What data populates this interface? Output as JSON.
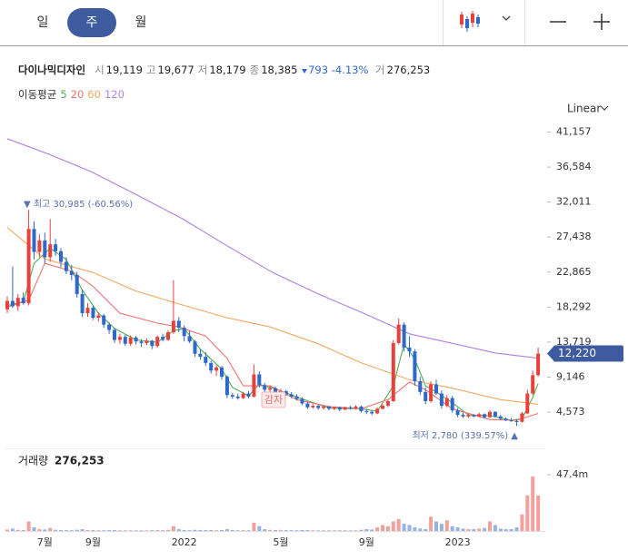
{
  "tabs": [
    "일",
    "주",
    "월"
  ],
  "info": {
    "name": "다이나믹디자인",
    "items": [
      {
        "label": "시",
        "value": "19,119"
      },
      {
        "label": "고",
        "value": "19,677"
      },
      {
        "label": "저",
        "value": "18,179"
      },
      {
        "label": "종",
        "value": "18,385"
      }
    ],
    "change": "793",
    "change_pct": "-4.13%",
    "volume_label": "거",
    "volume_value": "276,253"
  },
  "scale_mode": "Linear",
  "ma_legend": "이동평균",
  "chart_data": {
    "type": "candlestick",
    "categories": [
      null,
      null,
      null,
      null,
      null,
      null,
      null,
      "7월",
      null,
      null,
      null,
      null,
      null,
      null,
      null,
      null,
      "9월",
      null,
      null,
      null,
      null,
      null,
      null,
      null,
      null,
      null,
      null,
      null,
      null,
      null,
      null,
      null,
      null,
      "2022",
      null,
      null,
      null,
      null,
      null,
      null,
      null,
      null,
      null,
      null,
      null,
      null,
      null,
      null,
      null,
      null,
      null,
      "5월",
      null,
      null,
      null,
      null,
      null,
      null,
      null,
      null,
      null,
      null,
      null,
      null,
      null,
      null,
      null,
      "9월",
      null,
      null,
      null,
      null,
      null,
      null,
      null,
      null,
      null,
      null,
      null,
      null,
      null,
      null,
      null,
      null,
      "2023",
      null,
      null,
      null,
      null,
      null,
      null,
      null,
      null,
      null,
      null,
      null,
      null,
      null,
      null,
      null
    ],
    "candles": [
      [
        18000,
        19700,
        17500,
        19100
      ],
      [
        19100,
        23600,
        18200,
        18400
      ],
      [
        18400,
        20000,
        17800,
        19500
      ],
      [
        19500,
        20200,
        18600,
        18800
      ],
      [
        18800,
        30985,
        18500,
        28500
      ],
      [
        28500,
        29500,
        24500,
        25500
      ],
      [
        25500,
        27800,
        24800,
        27000
      ],
      [
        27000,
        28000,
        24000,
        24800
      ],
      [
        24800,
        29800,
        24200,
        26500
      ],
      [
        26500,
        27200,
        25000,
        25600
      ],
      [
        25600,
        26000,
        23500,
        24200
      ],
      [
        24200,
        24800,
        22600,
        23000
      ],
      [
        23000,
        23800,
        21800,
        22500
      ],
      [
        22500,
        22900,
        19500,
        20000
      ],
      [
        20000,
        20600,
        17000,
        17500
      ],
      [
        17500,
        18800,
        17000,
        18200
      ],
      [
        18200,
        18500,
        16600,
        16900
      ],
      [
        16900,
        17600,
        16400,
        17200
      ],
      [
        17200,
        17400,
        15600,
        16000
      ],
      [
        16000,
        16300,
        14800,
        15300
      ],
      [
        15300,
        15500,
        13600,
        14000
      ],
      [
        14000,
        14800,
        13500,
        14400
      ],
      [
        14400,
        14700,
        13200,
        13500
      ],
      [
        13500,
        14600,
        13200,
        14300
      ],
      [
        14300,
        14500,
        13400,
        13800
      ],
      [
        13800,
        14100,
        13100,
        13600
      ],
      [
        13600,
        14200,
        13300,
        13900
      ],
      [
        13900,
        14000,
        12800,
        13200
      ],
      [
        13200,
        14600,
        13000,
        14400
      ],
      [
        14400,
        14800,
        13800,
        14000
      ],
      [
        14000,
        15300,
        13900,
        15000
      ],
      [
        15000,
        21800,
        14800,
        16500
      ],
      [
        16500,
        17000,
        15000,
        15600
      ],
      [
        15600,
        15900,
        13800,
        14500
      ],
      [
        14500,
        15200,
        13600,
        13800
      ],
      [
        13800,
        14000,
        11800,
        12200
      ],
      [
        12200,
        12800,
        11400,
        11800
      ],
      [
        11800,
        12400,
        10600,
        11000
      ],
      [
        11000,
        11300,
        9600,
        10000
      ],
      [
        10000,
        10700,
        9300,
        10400
      ],
      [
        10400,
        10600,
        8800,
        9200
      ],
      [
        9200,
        9400,
        6400,
        6800
      ],
      [
        6800,
        7100,
        6300,
        6600
      ],
      [
        6600,
        7000,
        6200,
        6400
      ],
      [
        6400,
        7200,
        6300,
        7000
      ],
      [
        7000,
        7300,
        6400,
        6600
      ],
      [
        6600,
        10800,
        6500,
        9500
      ],
      [
        9500,
        9900,
        7800,
        8100
      ],
      [
        8100,
        8400,
        7200,
        7500
      ],
      [
        7500,
        8000,
        7100,
        7700
      ],
      [
        7700,
        7900,
        6900,
        7100
      ],
      [
        7100,
        7600,
        6800,
        7300
      ],
      [
        7300,
        7500,
        6700,
        6900
      ],
      [
        6900,
        7200,
        6400,
        6600
      ],
      [
        6600,
        6900,
        6100,
        6300
      ],
      [
        6300,
        6500,
        5500,
        5700
      ],
      [
        5700,
        5900,
        5000,
        5200
      ],
      [
        5200,
        5600,
        5000,
        5400
      ],
      [
        5400,
        5500,
        4900,
        5100
      ],
      [
        5100,
        5400,
        4900,
        5300
      ],
      [
        5300,
        5400,
        4800,
        5000
      ],
      [
        5000,
        5300,
        4800,
        5200
      ],
      [
        5200,
        5300,
        4700,
        4900
      ],
      [
        4900,
        5300,
        4800,
        5200
      ],
      [
        5200,
        5400,
        4900,
        5100
      ],
      [
        5100,
        5500,
        4900,
        5300
      ],
      [
        5300,
        5400,
        4500,
        4700
      ],
      [
        4700,
        5000,
        4300,
        4600
      ],
      [
        4600,
        4800,
        4200,
        4400
      ],
      [
        4400,
        5200,
        4300,
        5000
      ],
      [
        5000,
        5600,
        4900,
        5400
      ],
      [
        5400,
        6200,
        5200,
        6000
      ],
      [
        6000,
        14000,
        5900,
        13600
      ],
      [
        13600,
        16800,
        13400,
        16000
      ],
      [
        16000,
        16300,
        12500,
        13000
      ],
      [
        13000,
        14500,
        11800,
        12500
      ],
      [
        12500,
        12800,
        8000,
        8600
      ],
      [
        8600,
        9200,
        6800,
        7200
      ],
      [
        7200,
        7800,
        5600,
        6000
      ],
      [
        6000,
        8600,
        5800,
        8200
      ],
      [
        8200,
        8800,
        6800,
        7000
      ],
      [
        7000,
        7400,
        5000,
        5400
      ],
      [
        5400,
        6800,
        5200,
        6400
      ],
      [
        6400,
        6700,
        4500,
        4800
      ],
      [
        4800,
        5100,
        3900,
        4200
      ],
      [
        4200,
        4500,
        3800,
        4000
      ],
      [
        4000,
        4400,
        3800,
        4200
      ],
      [
        4200,
        4300,
        3900,
        4000
      ],
      [
        4000,
        4500,
        3900,
        4300
      ],
      [
        4300,
        4400,
        3800,
        3900
      ],
      [
        3900,
        4800,
        3800,
        4600
      ],
      [
        4600,
        4700,
        3900,
        4000
      ],
      [
        4000,
        4200,
        3600,
        3700
      ],
      [
        3700,
        3900,
        3400,
        3500
      ],
      [
        3500,
        3800,
        3300,
        3400
      ],
      [
        3400,
        3600,
        2780,
        3300
      ],
      [
        3300,
        4600,
        3200,
        4400
      ],
      [
        4400,
        7500,
        4300,
        7000
      ],
      [
        7000,
        10000,
        6800,
        9400
      ],
      [
        9400,
        13000,
        9200,
        12220
      ]
    ],
    "up_color": "#e8413c",
    "down_color": "#2e68c8",
    "ylim": [
      0,
      43000
    ],
    "yticks": [
      {
        "value": 4573,
        "label": "4,573"
      },
      {
        "value": 9146,
        "label": "9,146"
      },
      {
        "value": 13719,
        "label": "13,719"
      },
      {
        "value": 18292,
        "label": "18,292"
      },
      {
        "value": 22865,
        "label": "22,865"
      },
      {
        "value": 27438,
        "label": "27,438"
      },
      {
        "value": 32011,
        "label": "32,011"
      },
      {
        "value": 36584,
        "label": "36,584"
      },
      {
        "value": 41157,
        "label": "41,157"
      }
    ],
    "price_tag": {
      "value": 12220,
      "label": "12,220"
    },
    "series": [
      {
        "name": "5",
        "color": "#4cb050",
        "x": [
          0,
          3,
          5,
          8,
          11,
          14,
          17,
          20,
          24,
          28,
          31,
          33,
          36,
          40,
          42,
          45,
          47,
          50,
          55,
          60,
          66,
          69,
          72,
          74,
          76,
          78,
          80,
          83,
          86,
          90,
          94,
          96,
          98,
          99
        ],
        "values": [
          18500,
          19000,
          24000,
          26000,
          24500,
          20500,
          17500,
          15500,
          14000,
          13700,
          15200,
          15500,
          12800,
          10200,
          7800,
          6700,
          8200,
          7600,
          6300,
          5100,
          5000,
          4700,
          8000,
          13500,
          11500,
          8000,
          7200,
          5800,
          4200,
          4100,
          3500,
          3700,
          6500,
          8300
        ]
      },
      {
        "name": "20",
        "color": "#f07070",
        "x": [
          0,
          4,
          7,
          12,
          16,
          21,
          28,
          32,
          37,
          41,
          44,
          49,
          54,
          60,
          66,
          71,
          75,
          78,
          83,
          90,
          95,
          99
        ],
        "values": [
          18300,
          19200,
          24000,
          23000,
          21000,
          17500,
          16200,
          15700,
          14500,
          11600,
          8000,
          8000,
          6200,
          5300,
          5000,
          6200,
          8500,
          7500,
          5000,
          3600,
          3500,
          4400
        ]
      },
      {
        "name": "60",
        "color": "#f4a860",
        "x": [
          0,
          7,
          16,
          24,
          32,
          41,
          49,
          58,
          66,
          75,
          83,
          92,
          99
        ],
        "values": [
          28700,
          24600,
          22800,
          20400,
          18700,
          16900,
          15700,
          13500,
          11000,
          8800,
          7700,
          6200,
          5600
        ]
      },
      {
        "name": "120",
        "color": "#b07ee8",
        "x": [
          0,
          8,
          15.6,
          24,
          32.5,
          41,
          49.5,
          58,
          66.4,
          75,
          83.4,
          91,
          99.3
        ],
        "values": [
          40300,
          38200,
          36000,
          33000,
          29900,
          26300,
          22800,
          20000,
          17500,
          14800,
          13500,
          12300,
          11600
        ]
      }
    ],
    "annotations": [
      {
        "text": "▼ 최고 30,985 (-60.56%)"
      },
      {
        "text": "최저 2,780 (339.57%) ▲"
      },
      {
        "text": "감자"
      }
    ],
    "volume": {
      "label": "거래량",
      "value_text": "276,253",
      "ylim": [
        0,
        69
      ],
      "yticks": [
        {
          "value": 47.4,
          "label": "47.4m"
        }
      ],
      "values": [
        1.2,
        2.0,
        1.0,
        0.8,
        8.0,
        3.0,
        1.5,
        1.2,
        2.5,
        1.0,
        0.8,
        0.7,
        0.6,
        1.0,
        1.5,
        0.8,
        0.7,
        0.6,
        0.6,
        0.7,
        0.8,
        0.6,
        0.5,
        0.6,
        0.5,
        0.5,
        0.5,
        0.6,
        0.8,
        0.6,
        1.0,
        4.0,
        1.5,
        0.8,
        0.7,
        1.0,
        0.8,
        0.7,
        0.8,
        0.6,
        0.8,
        1.5,
        0.8,
        0.6,
        0.7,
        0.6,
        7.0,
        4.0,
        1.5,
        1.0,
        0.8,
        0.9,
        0.7,
        0.6,
        0.6,
        0.8,
        0.7,
        0.6,
        0.5,
        0.6,
        0.5,
        0.6,
        0.5,
        0.6,
        0.5,
        0.6,
        1.0,
        1.5,
        1.2,
        3.0,
        5.0,
        4.0,
        8.0,
        10.0,
        6.0,
        5.0,
        3.0,
        2.0,
        1.5,
        12.0,
        8.0,
        6.0,
        9.0,
        4.0,
        3.0,
        2.0,
        1.5,
        1.5,
        2.0,
        2.5,
        8.0,
        5.0,
        2.0,
        1.5,
        1.5,
        3.0,
        14.0,
        30.0,
        45.9,
        30.0
      ]
    }
  }
}
